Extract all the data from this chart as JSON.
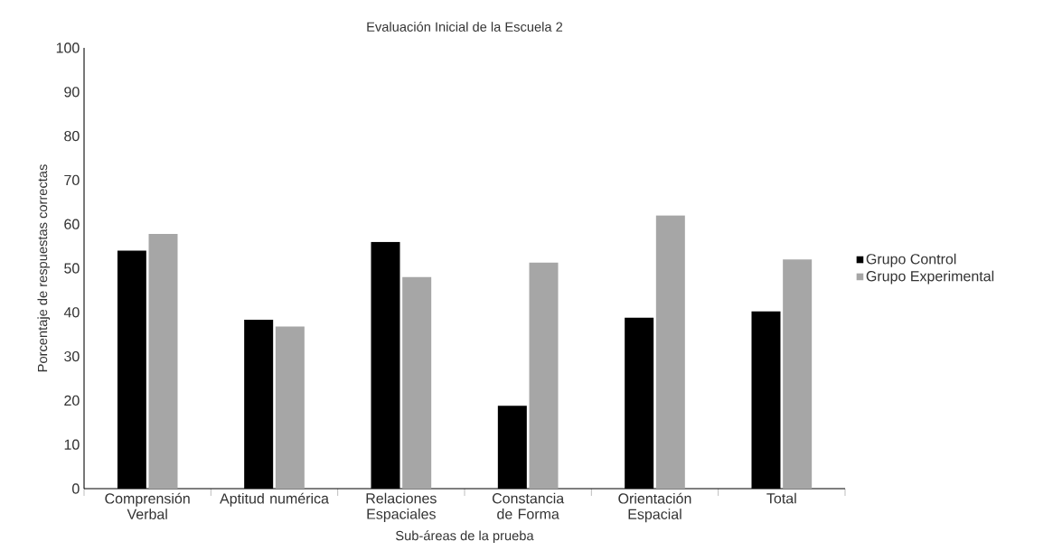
{
  "chart_data": {
    "type": "bar",
    "title": "Evaluación Inicial de la Escuela 2",
    "xlabel": "Sub-áreas de la prueba",
    "ylabel": "Porcentaje de respuestas correctas",
    "categories": [
      "Comprensión Verbal",
      "Aptitud numérica",
      "Relaciones Espaciales",
      "Constancia de Forma",
      "Orientación Espacial",
      "Total"
    ],
    "series": [
      {
        "name": "Grupo Control",
        "color": "#000000",
        "values": [
          54,
          38.3,
          56,
          18.8,
          38.8,
          40.2
        ]
      },
      {
        "name": "Grupo Experimental",
        "color": "#a6a6a6",
        "values": [
          57.8,
          36.8,
          48,
          51.3,
          62,
          52
        ]
      }
    ],
    "ylim": [
      0,
      100
    ],
    "yticks": [
      0,
      10,
      20,
      30,
      40,
      50,
      60,
      70,
      80,
      90,
      100
    ],
    "grid": false,
    "legend": "right"
  }
}
